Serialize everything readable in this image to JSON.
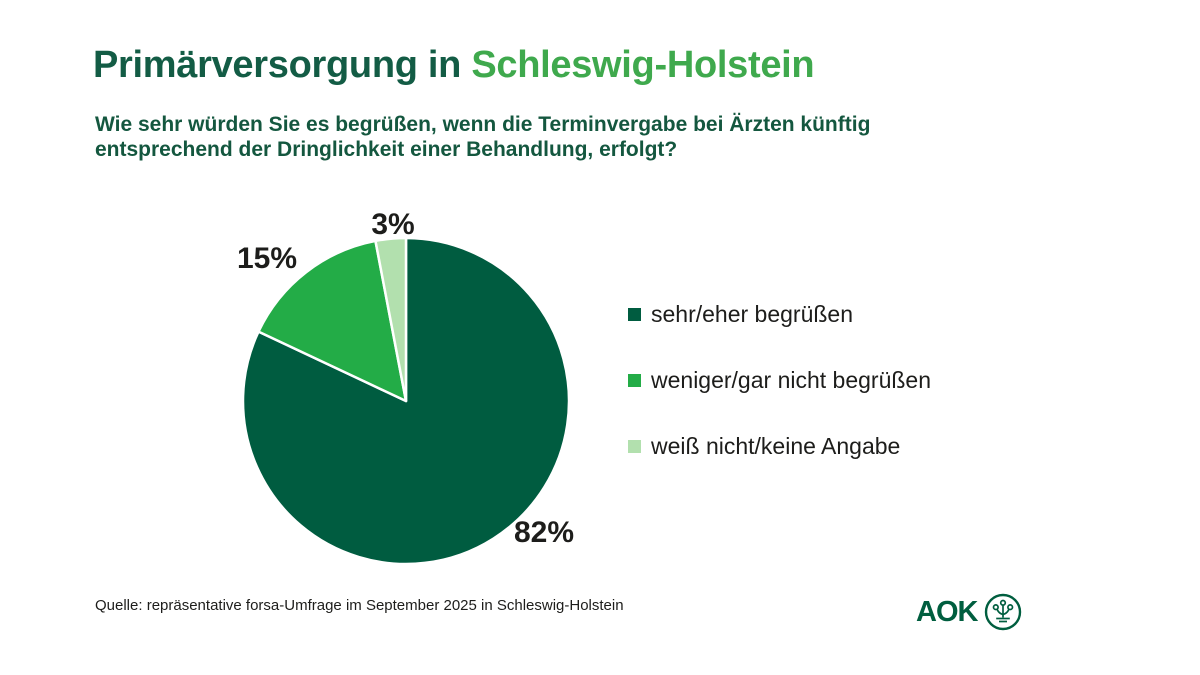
{
  "header": {
    "title_prefix": "Primärversorgung in ",
    "title_highlight": "Schleswig-Holstein",
    "subtitle_line1": "Wie sehr würden Sie es begrüßen, wenn die Terminvergabe bei Ärzten künftig",
    "subtitle_line2": "entsprechend der Dringlichkeit einer Behandlung, erfolgt?"
  },
  "chart_data": {
    "type": "pie",
    "title": "Primärversorgung in Schleswig-Holstein",
    "question": "Wie sehr würden Sie es begrüßen, wenn die Terminvergabe bei Ärzten künftig entsprechend der Dringlichkeit einer Behandlung, erfolgt?",
    "categories": [
      "sehr/eher begrüßen",
      "weniger/gar nicht begrüßen",
      "weiß nicht/keine Angabe"
    ],
    "values": [
      82,
      15,
      3
    ],
    "unit": "%",
    "colors": [
      "#005C40",
      "#23AC47",
      "#B2E0AE"
    ],
    "slice_labels": [
      "82%",
      "15%",
      "3%"
    ],
    "start_angle_deg": 0,
    "direction": "clockwise",
    "legend_position": "right",
    "slice_border_color": "#FFFFFF"
  },
  "footer": {
    "source": "Quelle: repräsentative forsa-Umfrage im September 2025 in Schleswig-Holstein",
    "logo_text": "AOK"
  },
  "colors": {
    "title_dark": "#135C45",
    "title_highlight": "#3FA94D",
    "subtitle": "#14573F",
    "label_text": "#1D1D1B",
    "logo_green": "#005E3F",
    "background": "#FFFFFF"
  }
}
